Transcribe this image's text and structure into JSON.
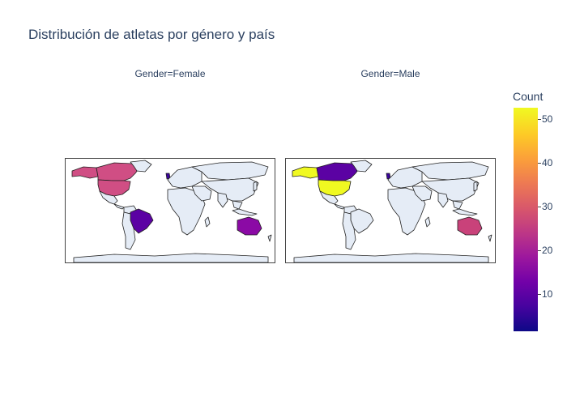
{
  "title": "Distribución de atletas por género y país",
  "facets": [
    {
      "label": "Gender=Female"
    },
    {
      "label": "Gender=Male"
    }
  ],
  "colorbar": {
    "title": "Count",
    "ticks": [
      "50",
      "40",
      "30",
      "20",
      "10"
    ],
    "colorscale": [
      "#0d0887",
      "#46039f",
      "#7201a8",
      "#9c179e",
      "#bd3786",
      "#d8576b",
      "#ed7953",
      "#fb9f3a",
      "#fdca26",
      "#f0f921"
    ]
  },
  "land_color": "#e5ecf6",
  "border_color": "#222222",
  "highlighted": {
    "female": [
      {
        "region": "Canada",
        "color": "#d04e84"
      },
      {
        "region": "USA",
        "color": "#d04e84"
      },
      {
        "region": "Alaska",
        "color": "#d04e84"
      },
      {
        "region": "Brazil",
        "color": "#5b02a3"
      },
      {
        "region": "Australia",
        "color": "#8b0aa5"
      },
      {
        "region": "Britain",
        "color": "#3a049a"
      }
    ],
    "male": [
      {
        "region": "Canada",
        "color": "#5b02a3"
      },
      {
        "region": "USA",
        "color": "#f0f921"
      },
      {
        "region": "Alaska",
        "color": "#f0f921"
      },
      {
        "region": "Australia",
        "color": "#c9427a"
      },
      {
        "region": "Britain",
        "color": "#3a049a"
      }
    ]
  }
}
